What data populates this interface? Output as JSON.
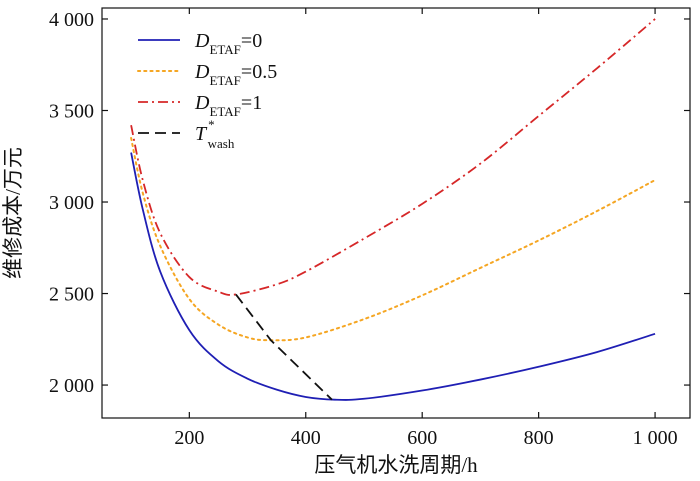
{
  "chart_data": {
    "type": "line",
    "xlabel": "压气机水洗周期/h",
    "ylabel": "维修成本/万元",
    "xlim": [
      50,
      1060
    ],
    "ylim": [
      1820,
      4060
    ],
    "xticks": [
      200,
      400,
      600,
      800,
      1000
    ],
    "xtick_labels": [
      "200",
      "400",
      "600",
      "800",
      "1 000"
    ],
    "yticks": [
      2000,
      2500,
      3000,
      3500,
      4000
    ],
    "ytick_labels": [
      "2 000",
      "2 500",
      "3 000",
      "3 500",
      "4 000"
    ],
    "grid": false,
    "legend": "top-left",
    "series": [
      {
        "key": "d0",
        "legend_main": "D",
        "legend_sub": "ETAF",
        "legend_suffix": "=0",
        "color": "#1f1fb4",
        "style": "solid",
        "x": [
          100,
          120,
          150,
          200,
          250,
          300,
          350,
          400,
          450,
          500,
          600,
          700,
          800,
          900,
          1000
        ],
        "y": [
          3270,
          2960,
          2620,
          2300,
          2130,
          2035,
          1975,
          1935,
          1920,
          1925,
          1970,
          2030,
          2100,
          2180,
          2280
        ]
      },
      {
        "key": "d05",
        "legend_main": "D",
        "legend_sub": "ETAF",
        "legend_suffix": "=0.5",
        "color": "#f5a623",
        "style": "dotted",
        "x": [
          100,
          120,
          150,
          200,
          250,
          300,
          340,
          400,
          500,
          600,
          700,
          800,
          900,
          1000
        ],
        "y": [
          3350,
          3050,
          2760,
          2470,
          2330,
          2260,
          2245,
          2260,
          2360,
          2490,
          2640,
          2790,
          2950,
          3120
        ]
      },
      {
        "key": "d1",
        "legend_main": "D",
        "legend_sub": "ETAF",
        "legend_suffix": "=1",
        "color": "#d62728",
        "style": "dashdot",
        "x": [
          100,
          120,
          150,
          200,
          250,
          280,
          350,
          400,
          500,
          600,
          700,
          800,
          900,
          1000
        ],
        "y": [
          3420,
          3120,
          2830,
          2590,
          2510,
          2495,
          2550,
          2620,
          2800,
          2990,
          3210,
          3470,
          3730,
          4000
        ]
      },
      {
        "key": "twash",
        "legend_main": "T",
        "legend_sub": "wash",
        "legend_sup": "*",
        "legend_suffix": "",
        "color": "#111111",
        "style": "dashed",
        "x": [
          280,
          340,
          445
        ],
        "y": [
          2495,
          2245,
          1920
        ]
      }
    ]
  }
}
